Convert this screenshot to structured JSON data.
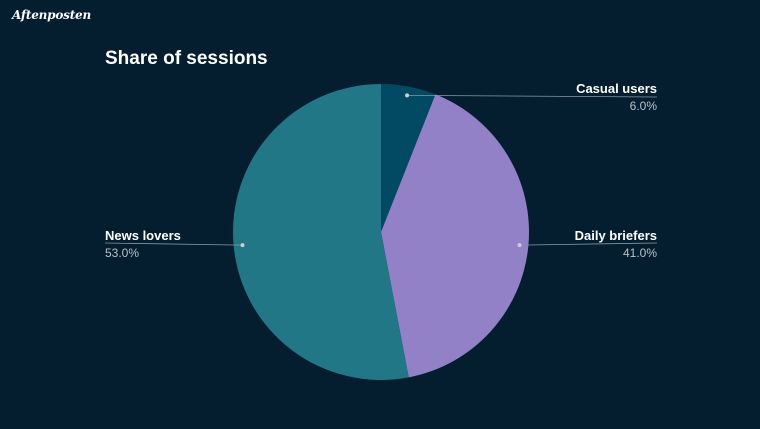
{
  "brand": {
    "logo_text": "Aftenposten"
  },
  "chart_data": {
    "type": "pie",
    "title": "Share of sessions",
    "slices": [
      {
        "label": "Casual users",
        "value": 6.0,
        "value_label": "6.0%",
        "color": "#024a63"
      },
      {
        "label": "Daily briefers",
        "value": 41.0,
        "value_label": "41.0%",
        "color": "#9381c7"
      },
      {
        "label": "News lovers",
        "value": 53.0,
        "value_label": "53.0%",
        "color": "#227787"
      }
    ],
    "start_angle": "12 o'clock",
    "direction": "clockwise",
    "background": "#041e30"
  }
}
